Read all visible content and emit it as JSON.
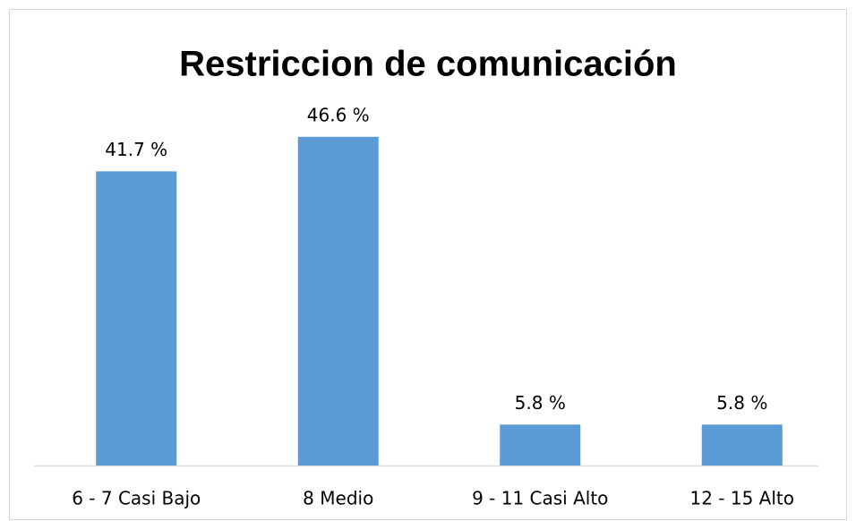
{
  "chart_data": {
    "type": "bar",
    "title": "Restriccion de comunicación",
    "categories": [
      "6 - 7 Casi Bajo",
      "8 Medio",
      "9 - 11 Casi Alto",
      "12 - 15 Alto"
    ],
    "values": [
      41.7,
      46.6,
      5.8,
      5.8
    ],
    "value_labels": [
      "41.7 %",
      "46.6 %",
      "5.8 %",
      "5.8 %"
    ],
    "color": "#5b9bd5",
    "ylim": [
      0,
      50
    ]
  }
}
